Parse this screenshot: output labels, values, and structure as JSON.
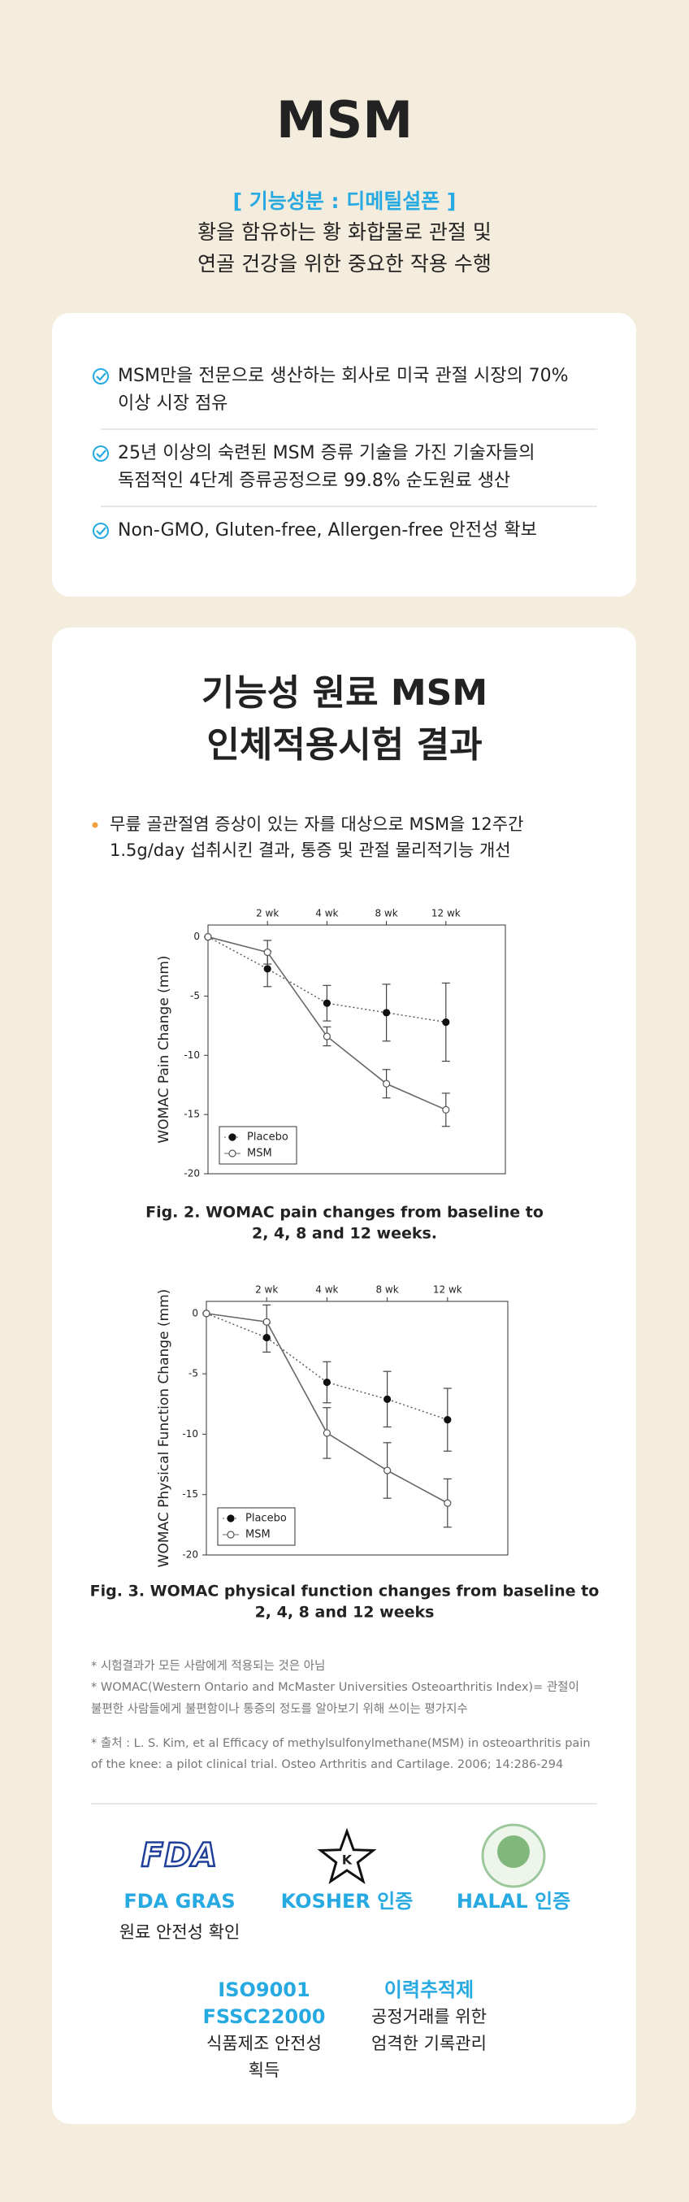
{
  "header": {
    "title": "MSM",
    "ingredient": "[ 기능성분 : 디메틸설폰 ]",
    "description": [
      "황을 함유하는 황 화합물로 관절 및",
      "연골 건강을 위한 중요한 작용 수행"
    ]
  },
  "features": [
    [
      "MSM만을 전문으로 생산하는 회사로 미국 관절 시장의 70%",
      "이상 시장 점유"
    ],
    [
      "25년 이상의 숙련된 MSM 증류 기술을 가진 기술자들의",
      "독점적인 4단계 증류공정으로 99.8% 순도원료 생산"
    ],
    [
      "Non-GMO, Gluten-free, Allergen-free 안전성 확보"
    ]
  ],
  "study": {
    "title": [
      "기능성 원료 MSM",
      "인체적용시험 결과"
    ],
    "summary": [
      "무릎 골관절염 증상이 있는 자를 대상으로 MSM을 12주간",
      "1.5g/day 섭취시킨 결과, 통증 및 관절 물리적기능 개선"
    ],
    "footnotes": [
      "* 시험결과가 모든 사람에게 적용되는 것은 아님",
      "* WOMAC(Western Ontario and McMaster Universities Osteoarthritis Index)= 관절이",
      "불편한 사람들에게 불편함이나 통증의 정도를 알아보기 위해 쓰이는 평가지수",
      "* 출처 : L. S. Kim, et al Efficacy of methylsulfonylmethane(MSM) in osteoarthritis pain",
      "of the knee: a pilot clinical trial. Osteo Arthritis and Cartilage. 2006; 14:286-294"
    ]
  },
  "chart_data": [
    {
      "type": "line",
      "ylabel": "WOMAC Pain Change (mm)",
      "caption": [
        "Fig. 2. WOMAC pain changes from baseline to",
        "2, 4, 8 and 12 weeks."
      ],
      "categories": [
        null,
        "2 wk",
        "4 wk",
        "8 wk",
        "12 wk"
      ],
      "ylim": [
        -20,
        1
      ],
      "yticks": [
        0,
        -5,
        -10,
        -15,
        -20
      ],
      "legend": "lower left",
      "series": [
        {
          "name": "Placebo",
          "color": "#555555",
          "line_style": "dotted",
          "marker": "filled",
          "values": [
            0,
            -2.7,
            -5.6,
            -6.4,
            -7.2
          ],
          "errors": [
            null,
            1.5,
            1.5,
            2.4,
            3.3
          ]
        },
        {
          "name": "MSM",
          "color": "#666666",
          "line_style": "solid",
          "marker": "open",
          "values": [
            0,
            -1.3,
            -8.4,
            -12.4,
            -14.6
          ],
          "errors": [
            null,
            1.0,
            0.8,
            1.2,
            1.4
          ]
        }
      ]
    },
    {
      "type": "line",
      "ylabel": "WOMAC Physical Function Change (mm)",
      "caption": [
        "Fig. 3. WOMAC physical function changes from baseline to",
        "2, 4, 8 and 12 weeks"
      ],
      "categories": [
        null,
        "2 wk",
        "4 wk",
        "8 wk",
        "12 wk"
      ],
      "ylim": [
        -20,
        1
      ],
      "yticks": [
        0,
        -5,
        -10,
        -15,
        -20
      ],
      "legend": "lower left",
      "series": [
        {
          "name": "Placebo",
          "color": "#555555",
          "line_style": "dotted",
          "marker": "filled",
          "values": [
            0,
            -2.0,
            -5.7,
            -7.1,
            -8.8
          ],
          "errors": [
            null,
            1.2,
            1.7,
            2.3,
            2.6
          ]
        },
        {
          "name": "MSM",
          "color": "#666666",
          "line_style": "solid",
          "marker": "open",
          "values": [
            0,
            -0.7,
            -9.9,
            -13.0,
            -15.7
          ],
          "errors": [
            null,
            1.4,
            2.1,
            2.3,
            2.0
          ]
        }
      ]
    }
  ],
  "certifications": [
    {
      "logo": "FDA",
      "name": [
        "FDA GRAS"
      ],
      "description": [
        "원료 안전성 확인"
      ]
    },
    {
      "logo": "K",
      "name": [
        "KOSHER 인증"
      ],
      "description": []
    },
    {
      "name": [
        "HALAL 인증"
      ],
      "description": []
    },
    {
      "name": [
        "ISO9001",
        "FSSC22000"
      ],
      "description": [
        "식품제조 안전성",
        "획득"
      ]
    },
    {
      "name": [
        "이력추적제"
      ],
      "description": [
        "공정거래를 위한",
        "엄격한 기록관리"
      ]
    }
  ]
}
